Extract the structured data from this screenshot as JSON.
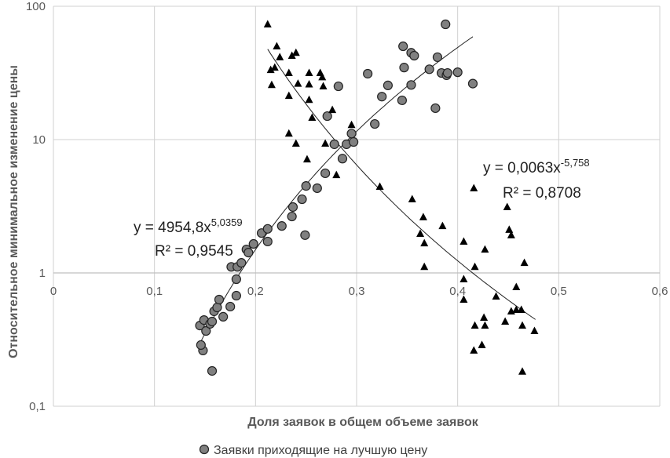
{
  "chart_data": {
    "type": "scatter",
    "x_label": "Доля заявок в общем объеме заявок",
    "y_label": "Относительное минимальное изменение цены",
    "xlim": [
      0,
      0.6
    ],
    "xticks": [
      0,
      {
        "value": 0.1,
        "label": "0,1"
      },
      {
        "value": 0.2,
        "label": "0,2"
      },
      {
        "value": 0.3,
        "label": "0,3"
      },
      {
        "value": 0.4,
        "label": "0,4"
      },
      {
        "value": 0.5,
        "label": "0,5"
      },
      {
        "value": 0.6,
        "label": "0,6"
      }
    ],
    "ylim": [
      0.1,
      100
    ],
    "yticks": [
      {
        "value": 0.1,
        "label": "0,1"
      },
      1,
      10,
      100
    ],
    "y_scale": "log",
    "x_axis_crosses": 1,
    "grid": true,
    "legend": "bottom",
    "series": [
      {
        "name": "Заявки приходящие на лучшую цену",
        "marker": "circle",
        "color": "#808080",
        "x": [
          0.148,
          0.146,
          0.145,
          0.149,
          0.151,
          0.155,
          0.157,
          0.159,
          0.162,
          0.164,
          0.168,
          0.157,
          0.175,
          0.176,
          0.182,
          0.181,
          0.181,
          0.186,
          0.191,
          0.193,
          0.198,
          0.206,
          0.212,
          0.212,
          0.226,
          0.236,
          0.237,
          0.246,
          0.25,
          0.249,
          0.261,
          0.269,
          0.271,
          0.278,
          0.282,
          0.286,
          0.29,
          0.295,
          0.297,
          0.311,
          0.318,
          0.325,
          0.331,
          0.346,
          0.347,
          0.345,
          0.354,
          0.357,
          0.354,
          0.372,
          0.378,
          0.38,
          0.384,
          0.388,
          0.389,
          0.39,
          0.4,
          0.415
        ],
        "values": [
          0.262,
          0.288,
          0.403,
          0.443,
          0.367,
          0.415,
          0.432,
          0.515,
          0.551,
          0.631,
          0.469,
          0.184,
          0.559,
          1.11,
          1.11,
          0.897,
          0.675,
          1.19,
          1.5,
          1.42,
          1.65,
          1.99,
          2.14,
          1.72,
          2.25,
          2.65,
          3.12,
          3.57,
          4.49,
          1.92,
          4.32,
          5.59,
          15.0,
          9.22,
          25.1,
          7.2,
          9.22,
          11.1,
          9.6,
          31.2,
          13.1,
          21.0,
          25.5,
          50.1,
          34.7,
          19.7,
          44.8,
          42.6,
          25.7,
          33.7,
          17.2,
          41.5,
          31.6,
          73.2,
          30.4,
          31.6,
          32.0,
          26.3
        ]
      },
      {
        "marker": "triangle",
        "color": "#000000",
        "x": [
          0.212,
          0.221,
          0.224,
          0.215,
          0.219,
          0.216,
          0.236,
          0.24,
          0.233,
          0.233,
          0.242,
          0.253,
          0.253,
          0.253,
          0.256,
          0.264,
          0.266,
          0.267,
          0.276,
          0.269,
          0.233,
          0.24,
          0.251,
          0.28,
          0.295,
          0.323,
          0.355,
          0.366,
          0.363,
          0.367,
          0.367,
          0.385,
          0.406,
          0.416,
          0.417,
          0.406,
          0.406,
          0.417,
          0.416,
          0.426,
          0.427,
          0.424,
          0.427,
          0.438,
          0.449,
          0.451,
          0.453,
          0.447,
          0.453,
          0.458,
          0.458,
          0.463,
          0.464,
          0.466,
          0.464,
          0.476
        ],
        "values": [
          73.2,
          50.1,
          41.5,
          33.3,
          34.7,
          25.7,
          42.6,
          44.8,
          31.6,
          21.3,
          26.3,
          31.6,
          26.0,
          19.9,
          14.6,
          31.6,
          29.4,
          25.1,
          16.7,
          9.35,
          11.1,
          9.35,
          7.12,
          5.43,
          12.9,
          4.44,
          3.57,
          2.62,
          1.97,
          1.67,
          1.11,
          2.25,
          1.72,
          4.32,
          1.11,
          0.897,
          0.631,
          0.403,
          0.262,
          0.462,
          1.5,
          0.288,
          0.403,
          0.666,
          3.12,
          2.11,
          1.92,
          0.432,
          0.515,
          0.784,
          0.529,
          0.529,
          0.403,
          1.19,
          0.182,
          0.367
        ]
      }
    ],
    "trendlines": [
      {
        "series": 0,
        "kind": "power",
        "coef": 4954.8,
        "power": 5.0359,
        "x_range": [
          0.145,
          0.415
        ],
        "equation": "y = 4954,8x",
        "exponent": "5,0359",
        "r2": "R² = 0,9545"
      },
      {
        "series": 1,
        "kind": "power",
        "coef": 0.0063,
        "power": -5.758,
        "x_range": [
          0.212,
          0.477
        ],
        "equation": "y = 0,0063x",
        "exponent": "-5,758",
        "r2": "R² = 0,8708"
      }
    ]
  }
}
